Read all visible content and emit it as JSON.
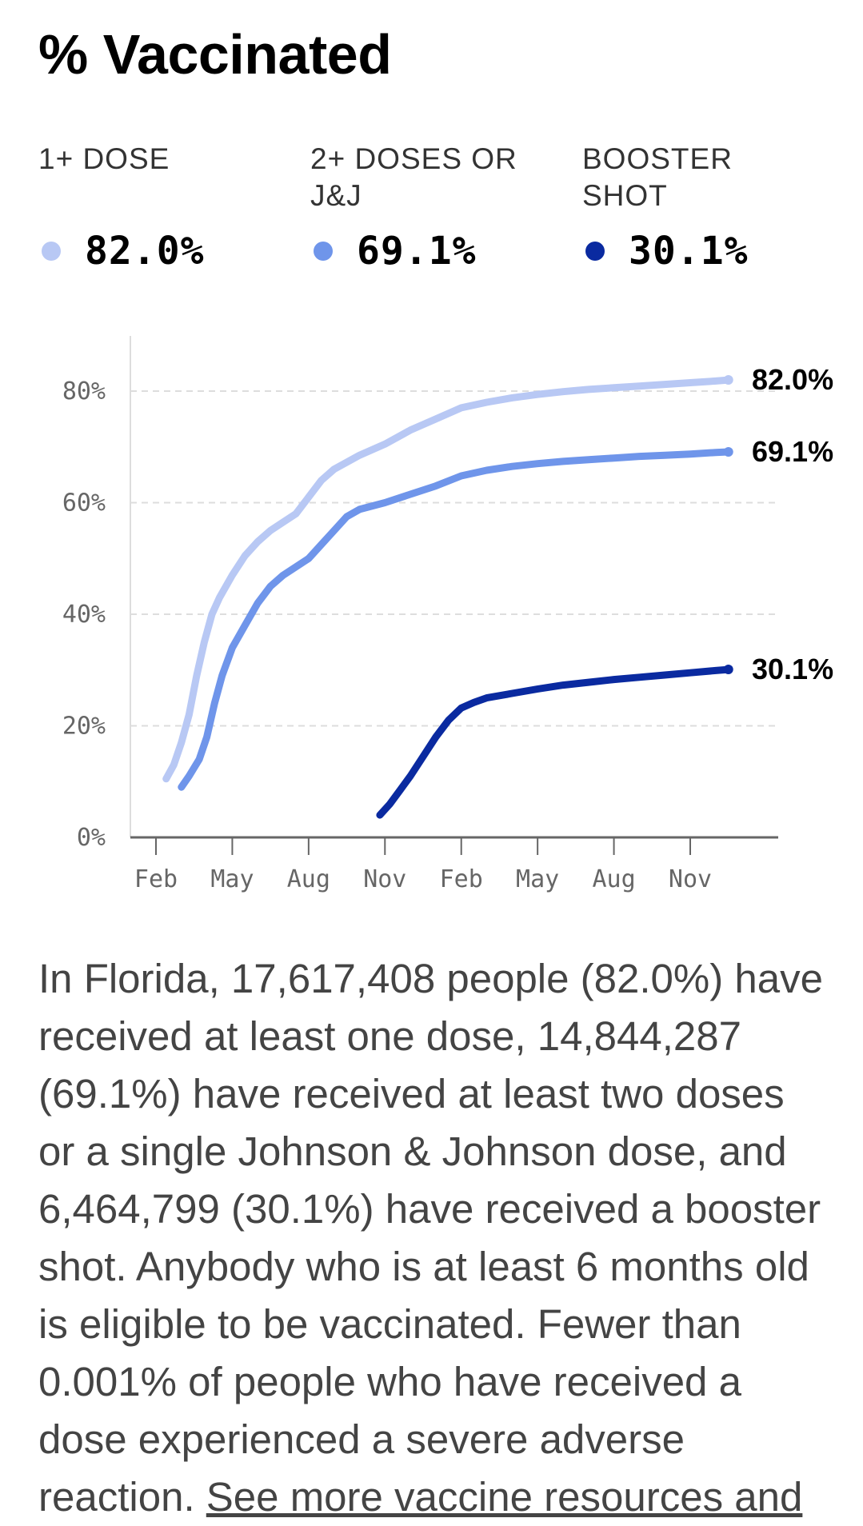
{
  "title": "% Vaccinated",
  "stats": [
    {
      "label": "1+ DOSE",
      "value": "82.0%",
      "color": "#b8c8f4"
    },
    {
      "label": "2+ DOSES OR J&J",
      "value": "69.1%",
      "color": "#6f95ea"
    },
    {
      "label": "BOOSTER SHOT",
      "value": "30.1%",
      "color": "#0a2aa0"
    }
  ],
  "summary": {
    "text": "In Florida, 17,617,408 people (82.0%) have received at least one dose, 14,844,287 (69.1%) have received at least two doses or a single Johnson & Johnson dose, and 6,464,799 (30.1%) have received a booster shot. Anybody who is at least 6 months old is eligible to be vaccinated. Fewer than 0.001% of people who have received a dose experienced a severe adverse reaction. ",
    "link": "See more vaccine resources and"
  },
  "chart_data": {
    "type": "line",
    "title": "% Vaccinated",
    "xlabel": "",
    "ylabel": "",
    "x_ticks": [
      "Feb",
      "May",
      "Aug",
      "Nov",
      "Feb",
      "May",
      "Aug",
      "Nov"
    ],
    "x_tick_months": [
      1,
      4,
      7,
      10,
      13,
      16,
      19,
      22
    ],
    "y_ticks": [
      "0%",
      "20%",
      "40%",
      "60%",
      "80%"
    ],
    "y_tick_values": [
      0,
      20,
      40,
      60,
      80
    ],
    "ylim": [
      0,
      90
    ],
    "xlim": [
      0,
      25
    ],
    "grid": true,
    "series": [
      {
        "name": "1+ DOSE",
        "color": "#b8c8f4",
        "end_label": "82.0%",
        "points": [
          [
            1.4,
            10.5
          ],
          [
            1.7,
            13
          ],
          [
            2.0,
            17
          ],
          [
            2.3,
            22
          ],
          [
            2.6,
            29
          ],
          [
            2.9,
            35
          ],
          [
            3.2,
            40
          ],
          [
            3.5,
            43
          ],
          [
            4.0,
            47
          ],
          [
            4.5,
            50.5
          ],
          [
            5.0,
            53
          ],
          [
            5.5,
            55
          ],
          [
            6.0,
            56.5
          ],
          [
            6.5,
            58
          ],
          [
            7.0,
            61
          ],
          [
            7.5,
            64
          ],
          [
            8.0,
            66
          ],
          [
            9.0,
            68.5
          ],
          [
            10.0,
            70.5
          ],
          [
            11.0,
            73
          ],
          [
            12.0,
            75
          ],
          [
            13.0,
            77
          ],
          [
            14.0,
            78
          ],
          [
            15.0,
            78.8
          ],
          [
            16.0,
            79.4
          ],
          [
            17.0,
            79.9
          ],
          [
            18.0,
            80.3
          ],
          [
            19.0,
            80.6
          ],
          [
            20.0,
            80.9
          ],
          [
            21.0,
            81.2
          ],
          [
            22.0,
            81.5
          ],
          [
            23.0,
            81.8
          ],
          [
            23.5,
            82.0
          ]
        ]
      },
      {
        "name": "2+ DOSES OR J&J",
        "color": "#6f95ea",
        "end_label": "69.1%",
        "points": [
          [
            2.0,
            9
          ],
          [
            2.3,
            11
          ],
          [
            2.7,
            14
          ],
          [
            3.0,
            18
          ],
          [
            3.3,
            24
          ],
          [
            3.6,
            29
          ],
          [
            4.0,
            34
          ],
          [
            4.5,
            38
          ],
          [
            5.0,
            42
          ],
          [
            5.5,
            45
          ],
          [
            6.0,
            47
          ],
          [
            6.5,
            48.5
          ],
          [
            7.0,
            50
          ],
          [
            7.5,
            52.5
          ],
          [
            8.0,
            55
          ],
          [
            8.5,
            57.5
          ],
          [
            9.0,
            58.8
          ],
          [
            10.0,
            60
          ],
          [
            11.0,
            61.5
          ],
          [
            12.0,
            63
          ],
          [
            13.0,
            64.8
          ],
          [
            14.0,
            65.8
          ],
          [
            15.0,
            66.5
          ],
          [
            16.0,
            67
          ],
          [
            17.0,
            67.4
          ],
          [
            18.0,
            67.7
          ],
          [
            19.0,
            68
          ],
          [
            20.0,
            68.3
          ],
          [
            21.0,
            68.5
          ],
          [
            22.0,
            68.7
          ],
          [
            23.0,
            69
          ],
          [
            23.5,
            69.1
          ]
        ]
      },
      {
        "name": "BOOSTER SHOT",
        "color": "#0a2aa0",
        "end_label": "30.1%",
        "points": [
          [
            9.8,
            4
          ],
          [
            10.2,
            6
          ],
          [
            10.6,
            8.5
          ],
          [
            11.0,
            11
          ],
          [
            11.5,
            14.5
          ],
          [
            12.0,
            18
          ],
          [
            12.5,
            21
          ],
          [
            13.0,
            23.2
          ],
          [
            13.5,
            24.2
          ],
          [
            14.0,
            25
          ],
          [
            15.0,
            25.8
          ],
          [
            16.0,
            26.6
          ],
          [
            17.0,
            27.3
          ],
          [
            18.0,
            27.8
          ],
          [
            19.0,
            28.3
          ],
          [
            20.0,
            28.7
          ],
          [
            21.0,
            29.1
          ],
          [
            22.0,
            29.5
          ],
          [
            23.0,
            29.9
          ],
          [
            23.5,
            30.1
          ]
        ]
      }
    ]
  }
}
